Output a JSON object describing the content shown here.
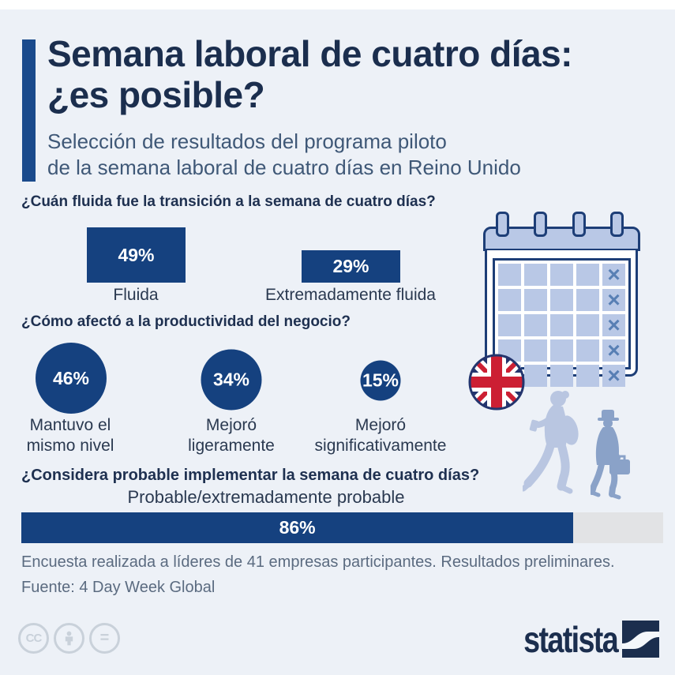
{
  "header": {
    "title_line1": "Semana laboral de cuatro días:",
    "title_line2": "¿es posible?",
    "subtitle_line1": "Selección de resultados del programa piloto",
    "subtitle_line2": "de la semana laboral de cuatro días en Reino Unido"
  },
  "chart_data": [
    {
      "type": "bar",
      "orientation": "vertical",
      "title": "¿Cuán fluida fue la transición a la semana de cuatro días?",
      "categories": [
        "Fluida",
        "Extremadamente fluida"
      ],
      "values": [
        49,
        29
      ],
      "value_labels": [
        "49%",
        "29%"
      ],
      "unit": "%",
      "bar_color": "#15417f",
      "grid": false
    },
    {
      "type": "bubble",
      "title": "¿Cómo afectó a la productividad del negocio?",
      "categories": [
        "Mantuvo el mismo nivel",
        "Mejoró ligeramente",
        "Mejoró significativamente"
      ],
      "categories_lines": [
        [
          "Mantuvo el",
          "mismo nivel"
        ],
        [
          "Mejoró",
          "ligeramente"
        ],
        [
          "Mejoró",
          "significativamente"
        ]
      ],
      "values": [
        46,
        34,
        15
      ],
      "value_labels": [
        "46%",
        "34%",
        "15%"
      ],
      "unit": "%",
      "bubble_color": "#15417f"
    },
    {
      "type": "bar",
      "orientation": "horizontal",
      "title": "¿Considera probable implementar la semana de cuatro días?",
      "subtitle": "Probable/extremadamente probable",
      "categories": [
        "Probable/extremadamente probable"
      ],
      "values": [
        86
      ],
      "value_labels": [
        "86%"
      ],
      "unit": "%",
      "xlim": [
        0,
        100
      ],
      "bar_color": "#15417f",
      "track_color": "#e2e3e5"
    }
  ],
  "footer": {
    "note_line1": "Encuesta realizada a líderes de 41 empresas participantes. Resultados preliminares.",
    "note_line2": "Fuente: 4 Day Week Global"
  },
  "license": {
    "cc_label": "CC",
    "nd_label": "="
  },
  "branding": {
    "wordmark": "statista"
  },
  "illustrations": {
    "calendar": {
      "rows": 5,
      "cols": 5,
      "crossed_column": 5,
      "cross_glyph": "×"
    },
    "flag": "united-kingdom"
  },
  "colors": {
    "background": "#edf1f7",
    "accent_navy": "#15417f",
    "title_accent": "#1a4a8c",
    "title_text": "#1b2e4e",
    "subtitle_text": "#3f5877",
    "footer_text": "#5b6b80",
    "track_gray": "#e2e3e5",
    "calendar_fill": "#b9c8e6",
    "calendar_outline": "#1d3e77",
    "cross_blue": "#587fb4",
    "silhouette_light": "#b9c6e1",
    "silhouette_dark": "#8aa2c8",
    "flag_navy": "#24356e",
    "flag_red": "#cc1f33"
  }
}
